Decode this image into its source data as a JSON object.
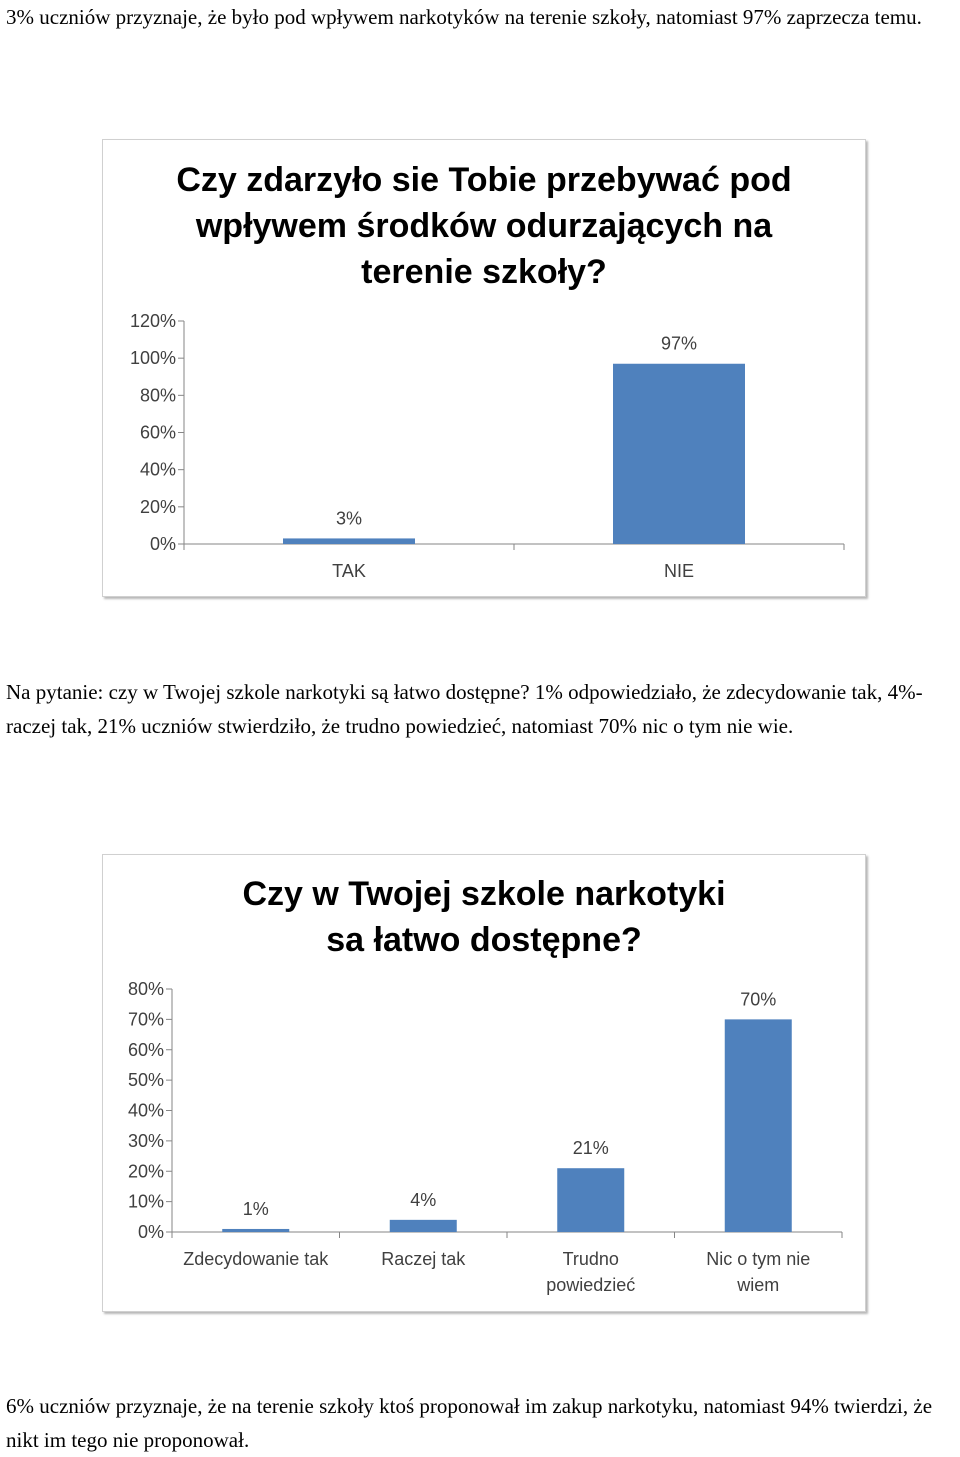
{
  "paragraphs": {
    "p1": "3% uczniów przyznaje, że było pod wpływem narkotyków na terenie szkoły, natomiast 97% zaprzecza temu.",
    "p2": "Na pytanie: czy w Twojej szkole narkotyki są łatwo dostępne? 1% odpowiedziało, że zdecydowanie tak, 4%- raczej tak, 21% uczniów stwierdziło, że trudno powiedzieć, natomiast 70% nic o tym nie wie.",
    "p3": "6% uczniów przyznaje, że na terenie szkoły ktoś proponował im zakup narkotyku, natomiast 94% twierdzi, że nikt im tego nie proponował."
  },
  "chart_data": [
    {
      "type": "bar",
      "title": "Czy zdarzyło sie Tobie przebywać pod wpływem środków odurzających na terenie szkoły?",
      "categories": [
        "TAK",
        "NIE"
      ],
      "values": [
        3,
        97
      ],
      "data_labels": [
        "3%",
        "97%"
      ],
      "ylim": [
        0,
        120
      ],
      "yticks": [
        0,
        20,
        40,
        60,
        80,
        100,
        120
      ],
      "ytick_labels": [
        "0%",
        "20%",
        "40%",
        "60%",
        "80%",
        "100%",
        "120%"
      ],
      "bar_color": "#4f81bd",
      "grid": false,
      "legend": "none"
    },
    {
      "type": "bar",
      "title": "Czy w Twojej szkole narkotyki sa łatwo dostępne?",
      "categories": [
        "Zdecydowanie tak",
        "Raczej tak",
        "Trudno powiedzieć",
        "Nic o tym nie wiem"
      ],
      "category_lines": [
        [
          "Zdecydowanie tak"
        ],
        [
          "Raczej tak"
        ],
        [
          "Trudno",
          "powiedzieć"
        ],
        [
          "Nic o tym nie",
          "wiem"
        ]
      ],
      "values": [
        1,
        4,
        21,
        70
      ],
      "data_labels": [
        "1%",
        "4%",
        "21%",
        "70%"
      ],
      "ylim": [
        0,
        80
      ],
      "yticks": [
        0,
        10,
        20,
        30,
        40,
        50,
        60,
        70,
        80
      ],
      "ytick_labels": [
        "0%",
        "10%",
        "20%",
        "30%",
        "40%",
        "50%",
        "60%",
        "70%",
        "80%"
      ],
      "bar_color": "#4f81bd",
      "grid": false,
      "legend": "none"
    }
  ]
}
